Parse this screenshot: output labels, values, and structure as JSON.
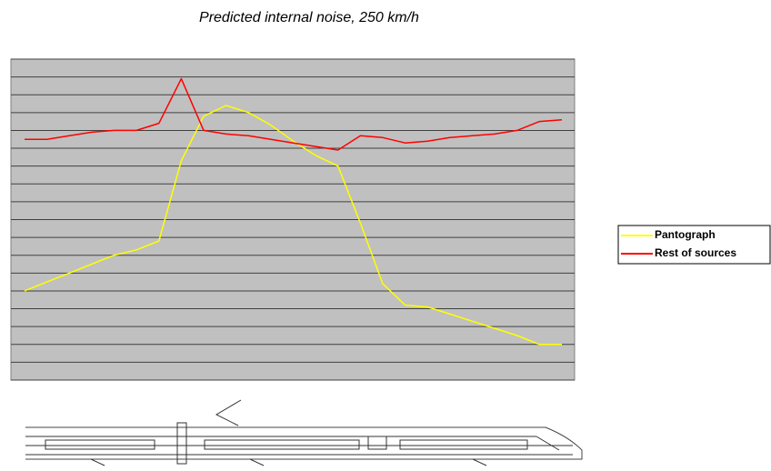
{
  "chart_data": {
    "type": "line",
    "title": "Predicted internal noise, 250 km/h",
    "ylim": [
      0,
      18
    ],
    "yticks": [
      0,
      1,
      2,
      3,
      4,
      5,
      6,
      7,
      8,
      9,
      10,
      11,
      12,
      13,
      14,
      15,
      16,
      17,
      18
    ],
    "grid": true,
    "legend": "right",
    "series": [
      {
        "name": "Pantograph",
        "color": "#ffff00",
        "values": [
          5.0,
          5.5,
          6.0,
          6.5,
          7.0,
          7.3,
          7.8,
          12.3,
          14.8,
          15.4,
          15.0,
          14.3,
          13.4,
          12.6,
          12.0,
          8.8,
          5.4,
          4.2,
          4.1,
          3.7,
          3.3,
          2.9,
          2.5,
          2.0,
          2.0
        ]
      },
      {
        "name": "Rest of sources",
        "color": "#ff0000",
        "values": [
          13.5,
          13.5,
          13.7,
          13.9,
          14.0,
          14.0,
          14.4,
          16.9,
          14.0,
          13.8,
          13.7,
          13.5,
          13.3,
          13.1,
          12.9,
          13.7,
          13.6,
          13.3,
          13.4,
          13.6,
          13.7,
          13.8,
          14.0,
          14.5,
          14.6
        ]
      }
    ]
  }
}
